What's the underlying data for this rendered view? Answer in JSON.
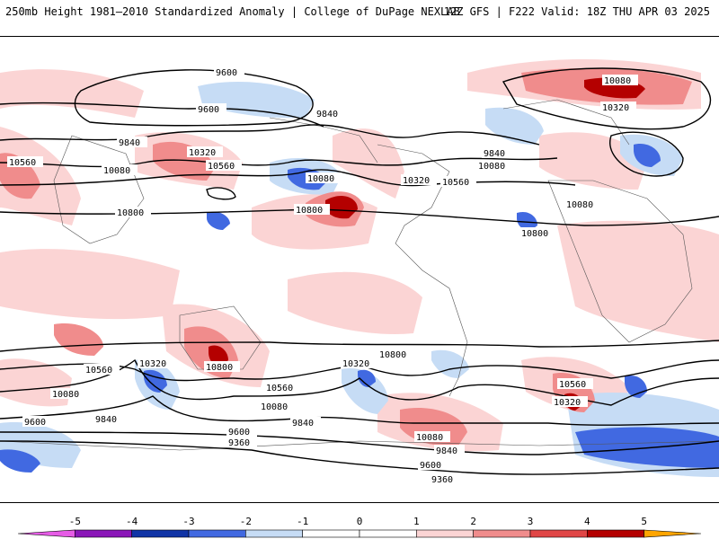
{
  "header": {
    "title": "250mb Height 1981–2010 Standardized Anomaly | College of DuPage NEXLAB",
    "run_info": "12Z GFS | F222 Valid: 18Z THU APR 03 2025"
  },
  "contour_labels": [
    "9600",
    "9600",
    "9840",
    "9840",
    "9840",
    "10080",
    "10080",
    "10080",
    "10080",
    "10320",
    "10320",
    "10320",
    "10560",
    "10560",
    "10560",
    "10800",
    "10800",
    "10800",
    "10080",
    "10320",
    "10560",
    "10800",
    "10560",
    "10320",
    "10800",
    "10560",
    "10080",
    "10320",
    "10080",
    "9600",
    "9840",
    "9840",
    "9600",
    "9360",
    "10080",
    "9840",
    "9600",
    "9360"
  ],
  "colorbar": {
    "ticks": [
      "-5",
      "-4",
      "-3",
      "-2",
      "-1",
      "0",
      "1",
      "2",
      "3",
      "4",
      "5"
    ],
    "colors": {
      "neg5": "#e65ce6",
      "neg4": "#8a16b8",
      "neg3": "#1034a6",
      "neg2": "#4169e1",
      "neg1": "#c6dcf5",
      "zero": "#ffffff",
      "pos1": "#fbd4d4",
      "pos2": "#f08c8c",
      "pos3": "#e04646",
      "pos4": "#b40000",
      "pos5": "#ffa500"
    }
  }
}
